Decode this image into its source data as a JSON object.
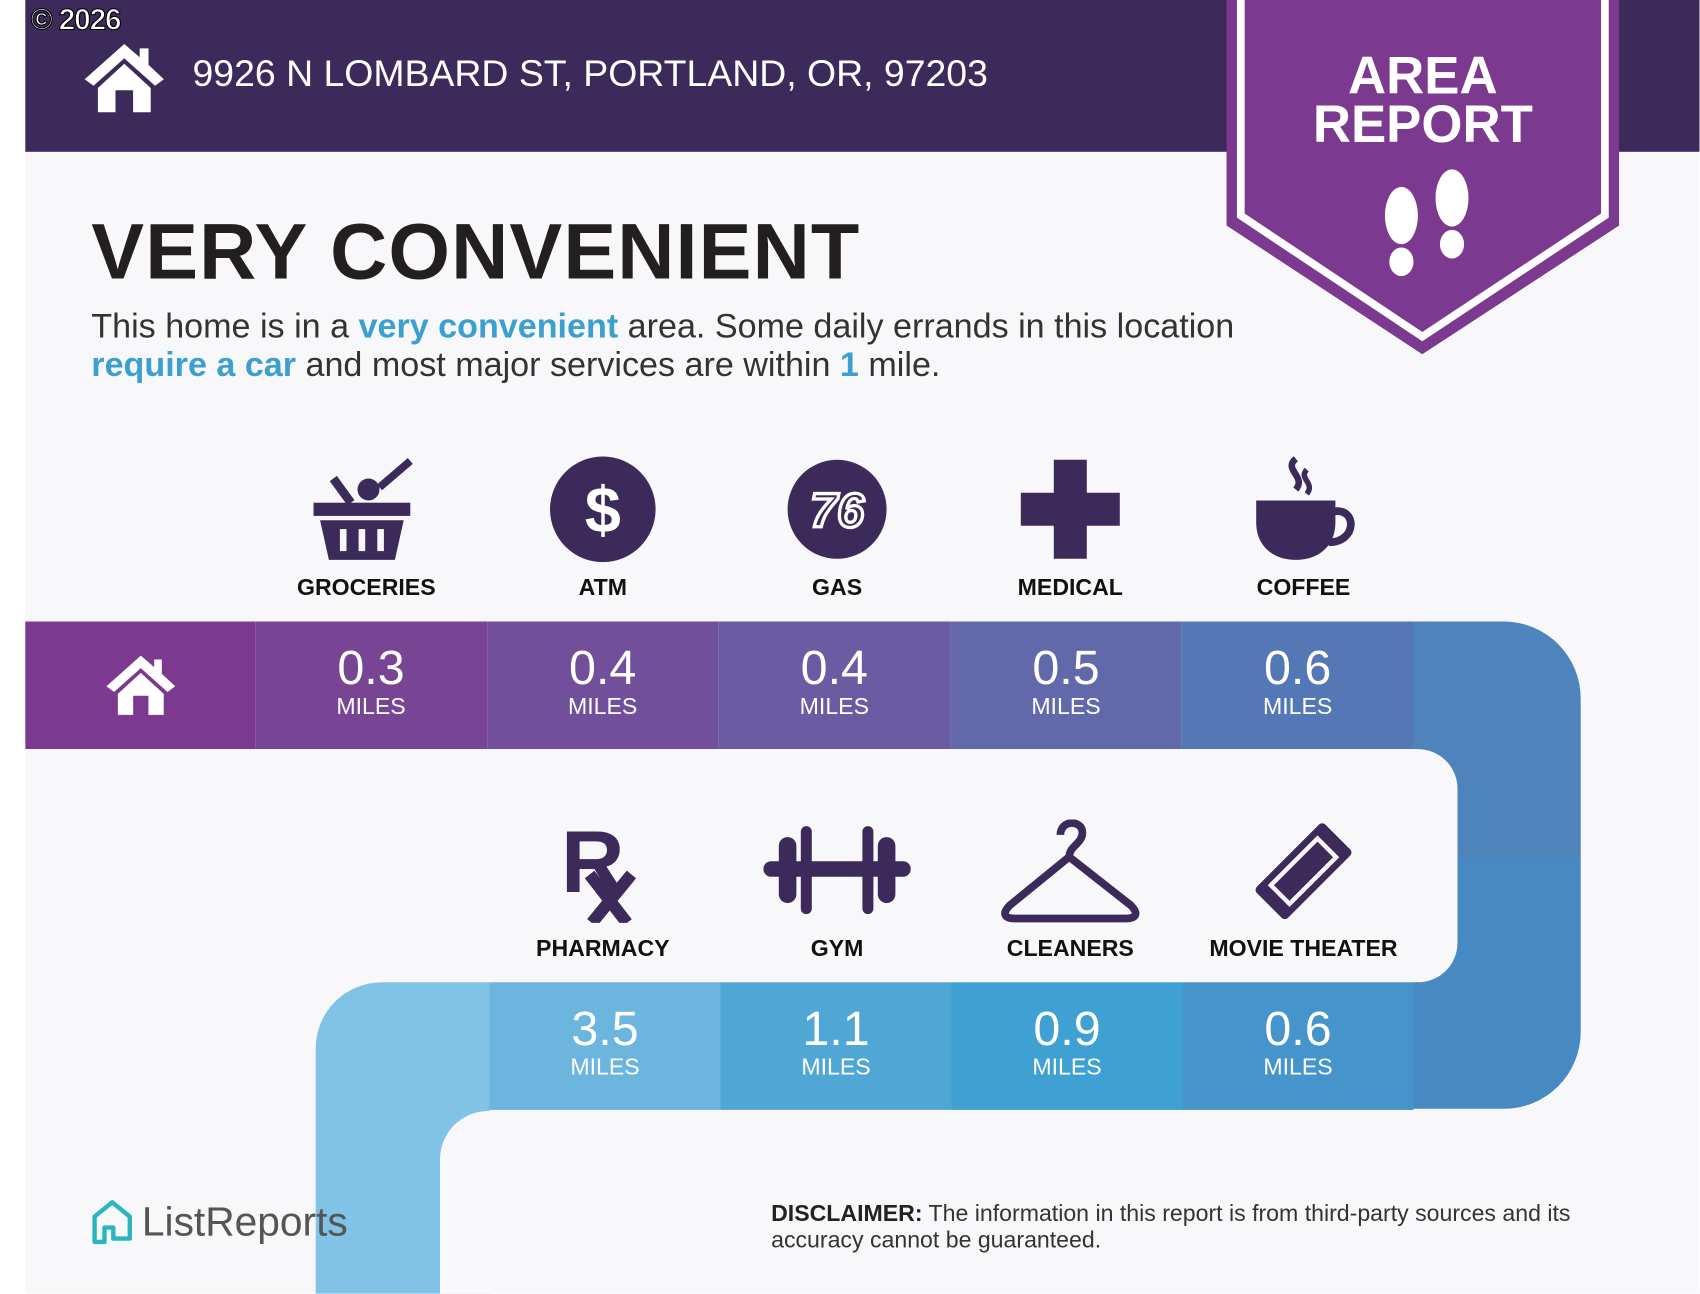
{
  "copyright": "© 2026",
  "header": {
    "address": "9926 N LOMBARD ST, PORTLAND, OR, 97203",
    "home_icon": "house-icon"
  },
  "badge": {
    "line1": "AREA",
    "line2": "REPORT",
    "icon": "footprints-icon"
  },
  "rating": {
    "title": "VERY CONVENIENT",
    "desc_1": "This home is in a ",
    "desc_hl1": "very convenient",
    "desc_2": " area. Some daily errands in this location ",
    "desc_hl2": "require a car",
    "desc_3": " and most major services are within ",
    "desc_hl3": "1",
    "desc_4": " mile."
  },
  "unit_label": "MILES",
  "top_row": [
    {
      "label": "GROCERIES",
      "icon": "grocery-basket-icon",
      "distance": "0.3",
      "color": "#784594"
    },
    {
      "label": "ATM",
      "icon": "dollar-icon",
      "distance": "0.4",
      "color": "#714f9b"
    },
    {
      "label": "GAS",
      "icon": "gas-76-icon",
      "distance": "0.4",
      "color": "#6a5ba3"
    },
    {
      "label": "MEDICAL",
      "icon": "medical-cross-icon",
      "distance": "0.5",
      "color": "#6269ab"
    },
    {
      "label": "COFFEE",
      "icon": "coffee-cup-icon",
      "distance": "0.6",
      "color": "#5478b5"
    }
  ],
  "bottom_row": [
    {
      "label": "PHARMACY",
      "icon": "rx-icon",
      "distance": "3.5",
      "color": "#6bb5de"
    },
    {
      "label": "GYM",
      "icon": "dumbbell-icon",
      "distance": "1.1",
      "color": "#50a7d6"
    },
    {
      "label": "CLEANERS",
      "icon": "hanger-icon",
      "distance": "0.9",
      "color": "#3ea0d3"
    },
    {
      "label": "MOVIE THEATER",
      "icon": "ticket-icon",
      "distance": "0.6",
      "color": "#4594cb"
    }
  ],
  "colors": {
    "header": "#3c2a5a",
    "badge": "#7b3a8f",
    "highlight": "#3ba0cf",
    "home_segment": "#7b3a8f",
    "icon": "#3c2a5a"
  },
  "footer": {
    "brand": "ListReports",
    "disclaimer_label": "DISCLAIMER:",
    "disclaimer_text": " The information in this report is from third-party sources and its accuracy cannot be guaranteed."
  }
}
